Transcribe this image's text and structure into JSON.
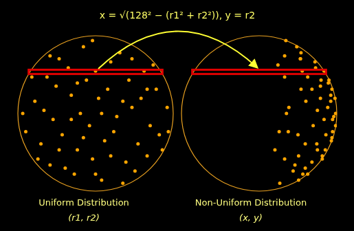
{
  "title": "x = √(128² − (r1² + r2²)), y = r2",
  "chart_data": [
    {
      "type": "scatter",
      "caption": "Uniform Distribution",
      "subcaption": "(r1, r2)",
      "color": "#ffa500",
      "xlim": [
        -128,
        128
      ],
      "ylim": [
        -128,
        128
      ],
      "tick_labels": false,
      "grid": false,
      "highlight_y": [
        65,
        72
      ],
      "x": [
        -100,
        -90,
        -80,
        -70,
        -60,
        -50,
        -40,
        -30,
        -20,
        -10,
        0,
        10,
        20,
        30,
        40,
        50,
        60,
        70,
        80,
        90,
        100,
        110,
        -115,
        -105,
        -85,
        -75,
        -65,
        -55,
        -45,
        -35,
        -25,
        -15,
        -5,
        5,
        15,
        25,
        35,
        45,
        55,
        65,
        75,
        85,
        95,
        105,
        118,
        -120,
        -95,
        -60,
        -20,
        25,
        60,
        -5,
        -40,
        0,
        45,
        85,
        -75,
        10,
        -30,
        120
      ],
      "values": [
        20,
        -50,
        60,
        -10,
        90,
        -90,
        30,
        -60,
        110,
        -20,
        70,
        -110,
        40,
        -30,
        100,
        -80,
        10,
        -50,
        70,
        -20,
        40,
        -60,
        -30,
        60,
        5,
        -85,
        45,
        -35,
        75,
        -100,
        0,
        55,
        -75,
        25,
        -45,
        85,
        -5,
        -115,
        55,
        -95,
        25,
        -70,
        80,
        -35,
        10,
        0,
        -75,
        -60,
        -40,
        -70,
        90,
        120,
        -10,
        -100,
        20,
        40,
        95,
        0,
        50,
        -30
      ]
    },
    {
      "type": "scatter",
      "caption": "Non-Uniform Distribution",
      "subcaption": "(x, y)",
      "color": "#ffa500",
      "xlim": [
        -128,
        128
      ],
      "ylim": [
        -128,
        128
      ],
      "tick_labels": false,
      "grid": false,
      "highlight_y": [
        65,
        72
      ],
      "x": [
        77,
        76,
        80,
        107,
        68,
        76,
        118,
        109,
        62,
        126,
        107,
        65,
        120,
        121,
        69,
        87,
        113,
        95,
        71,
        89,
        69,
        26,
        48,
        42,
        96,
        59,
        101,
        110,
        93,
        72,
        126,
        115,
        104,
        125,
        119,
        92,
        123,
        34,
        102,
        56,
        101,
        65,
        31,
        64,
        49,
        45,
        42,
        96,
        120,
        104,
        68,
        44,
        121,
        80,
        118,
        87,
        42,
        128,
        114,
        33
      ],
      "values": [
        20,
        -50,
        60,
        -10,
        90,
        -90,
        30,
        -60,
        110,
        -20,
        70,
        -110,
        40,
        -30,
        100,
        -80,
        10,
        -50,
        70,
        -20,
        40,
        -60,
        -30,
        60,
        5,
        -85,
        45,
        -35,
        75,
        -100,
        0,
        55,
        -75,
        25,
        -45,
        85,
        -5,
        -115,
        55,
        -95,
        25,
        -70,
        80,
        -35,
        10,
        0,
        -75,
        -60,
        -40,
        -70,
        90,
        120,
        -10,
        -100,
        20,
        40,
        95,
        0,
        50,
        -30
      ]
    }
  ]
}
